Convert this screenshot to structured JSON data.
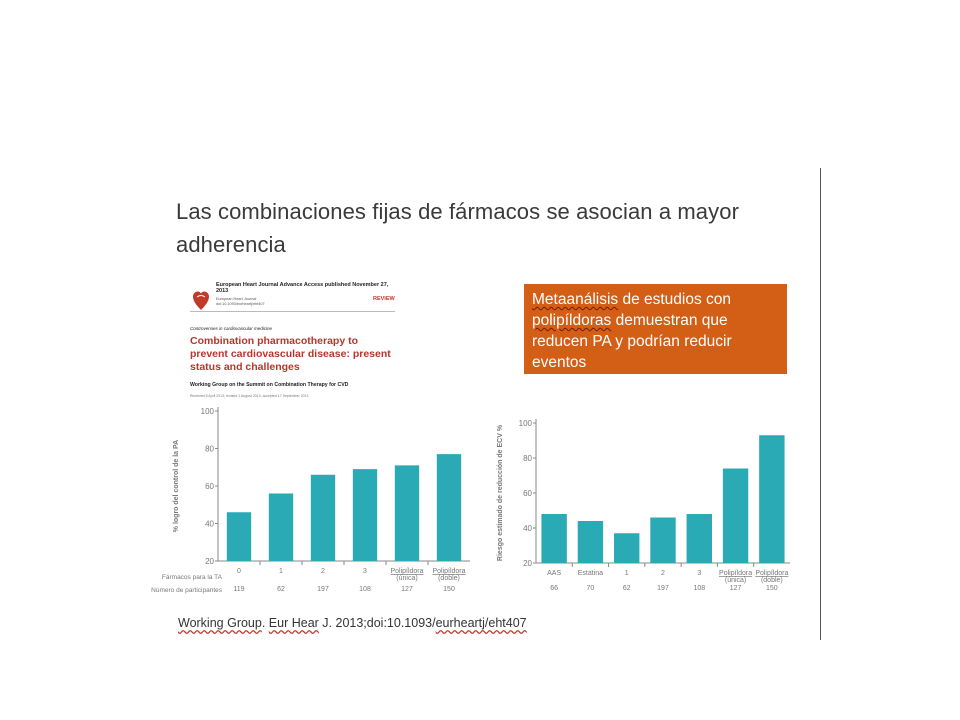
{
  "slide": {
    "title": "Las combinaciones fijas de fármacos se asocian a mayor adherencia",
    "citation": {
      "part1": "Working Group",
      "part2": ". ",
      "part3": "Eur Hear",
      "part4": " J. 2013;doi:10.1093/",
      "part5": "eurheartj/eht407"
    },
    "callout": {
      "w1": "Metaanálisis",
      "t1": " de estudios con ",
      "w2": "polipíldoras",
      "t2": " demuestran que reducen PA y podrían reducir eventos"
    }
  },
  "paper": {
    "advance_access": "European Heart Journal Advance Access published November 27, 2013",
    "journal_line1": "European Heart Journal",
    "journal_line2": "doi:10.1093/eurheartj/eht407",
    "review_label": "REVIEW",
    "section": "Controversies in cardiovascular medicine",
    "title": "Combination pharmacotherapy to prevent cardiovascular disease: present status and challenges",
    "authors": "Working Group on the Summit on Combination Therapy for CVD",
    "dates": "Received 5 April 2013; revised 1 August 2013; accepted 17 September 2013"
  },
  "colors": {
    "bar": "#2aaab5",
    "callout": "#d35e16",
    "paper_title": "#b5362b"
  },
  "chart_data": [
    {
      "type": "bar",
      "ylabel": "% logro del control de la PA",
      "ylim": [
        20,
        100
      ],
      "yticks": [
        20,
        40,
        60,
        80,
        100
      ],
      "categories": [
        "0",
        "1",
        "2",
        "3",
        "Polipíldora (única)",
        "Polipíldora (doble)"
      ],
      "values": [
        46,
        56,
        66,
        69,
        71,
        77
      ],
      "row_labels": [
        "Fármacos para la TA",
        "Número de participantes"
      ],
      "participants": [
        "119",
        "62",
        "197",
        "108",
        "127",
        "150"
      ]
    },
    {
      "type": "bar",
      "ylabel": "Riesgo estimado de reducción de ECV %",
      "ylim": [
        20,
        100
      ],
      "yticks": [
        20,
        40,
        60,
        80,
        100
      ],
      "categories": [
        "AAS",
        "Estatina",
        "1",
        "2",
        "3",
        "Polipíldora (única)",
        "Polipíldora (doble)"
      ],
      "values": [
        48,
        44,
        37,
        46,
        48,
        74,
        93
      ],
      "participants": [
        "66",
        "70",
        "62",
        "197",
        "108",
        "127",
        "150"
      ]
    }
  ]
}
